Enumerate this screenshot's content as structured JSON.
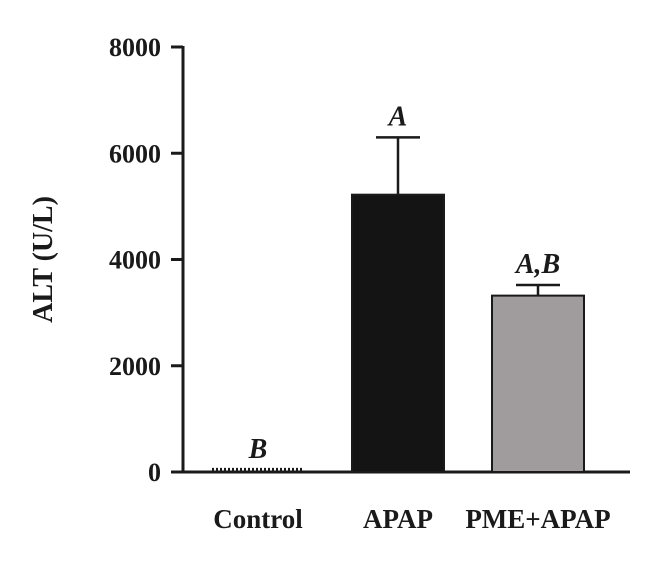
{
  "chart_data": {
    "type": "bar",
    "ylabel": "ALT (U/L)",
    "xlabel": "",
    "title": "",
    "ylim": [
      0,
      8000
    ],
    "yticks": [
      0,
      2000,
      4000,
      6000,
      8000
    ],
    "categories": [
      "Control",
      "APAP",
      "PME+APAP"
    ],
    "values": [
      40,
      5220,
      3320
    ],
    "errors": [
      0,
      1080,
      200
    ],
    "significance": [
      "B",
      "A",
      "A,B"
    ],
    "bar_colors": [
      "#1a1a1a",
      "#141414",
      "#a09b9c"
    ],
    "bar_patterns": [
      "dotted",
      "solid",
      "solid"
    ]
  }
}
